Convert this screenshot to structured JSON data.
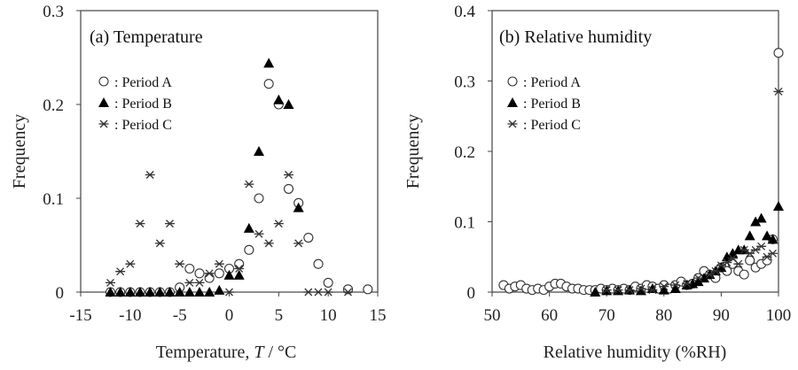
{
  "chart_data": [
    {
      "type": "scatter",
      "title": "(a) Temperature",
      "xlabel": "Temperature,",
      "xlabel_symbol": "T",
      "xlabel_unit": "/ °C",
      "ylabel": "Frequency",
      "xlim": [
        -15,
        15
      ],
      "ylim": [
        0,
        0.3
      ],
      "xticks": [
        "-15",
        "-10",
        "-5",
        "0",
        "5",
        "10",
        "15"
      ],
      "yticks": [
        "0",
        "0.1",
        "0.2",
        "0.3"
      ],
      "series": [
        {
          "name": ": Period A",
          "marker": "circle",
          "x": [
            -12,
            -11,
            -10,
            -9,
            -8,
            -7,
            -6,
            -5,
            -4,
            -3,
            -2,
            -1,
            0,
            1,
            2,
            3,
            4,
            5,
            6,
            7,
            8,
            9,
            10,
            12,
            14
          ],
          "y": [
            0,
            0,
            0,
            0,
            0,
            0,
            0,
            0.005,
            0.025,
            0.02,
            0.015,
            0.02,
            0.025,
            0.03,
            0.045,
            0.1,
            0.222,
            0.2,
            0.11,
            0.095,
            0.058,
            0.03,
            0.01,
            0.003,
            0.003
          ]
        },
        {
          "name": ": Period B",
          "marker": "triangle",
          "x": [
            -12,
            -11,
            -10,
            -9,
            -8,
            -7,
            -6,
            -5,
            -4,
            -3,
            -2,
            -1,
            0,
            1,
            2,
            3,
            4,
            5,
            6,
            7
          ],
          "y": [
            0,
            0,
            0,
            0,
            0,
            0,
            0,
            0,
            0,
            0,
            0,
            0.002,
            0.018,
            0.018,
            0.068,
            0.15,
            0.244,
            0.205,
            0.2,
            0.09
          ]
        },
        {
          "name": ": Period C",
          "marker": "asterisk",
          "x": [
            -12,
            -11,
            -10,
            -9,
            -8,
            -7,
            -6,
            -5,
            -4,
            -3,
            -2,
            -1,
            0,
            1,
            2,
            3,
            4,
            5,
            6,
            7,
            8,
            9,
            10,
            12
          ],
          "y": [
            0.01,
            0.022,
            0.03,
            0.073,
            0.125,
            0.052,
            0.073,
            0.03,
            0.01,
            0.01,
            0.02,
            0.03,
            0,
            0.025,
            0.115,
            0.062,
            0.052,
            0.073,
            0.125,
            0.052,
            0,
            0,
            0,
            0
          ]
        }
      ]
    },
    {
      "type": "scatter",
      "title": "(b) Relative humidity",
      "xlabel": "Relative humidity (%RH)",
      "ylabel": "Frequency",
      "xlim": [
        50,
        100
      ],
      "ylim": [
        0,
        0.4
      ],
      "xticks": [
        "50",
        "60",
        "70",
        "80",
        "90",
        "100"
      ],
      "yticks": [
        "0",
        "0.1",
        "0.2",
        "0.3",
        "0.4"
      ],
      "series": [
        {
          "name": ": Period A",
          "marker": "circle",
          "x": [
            52,
            53,
            54,
            55,
            56,
            57,
            58,
            59,
            60,
            61,
            62,
            63,
            64,
            65,
            66,
            67,
            68,
            69,
            70,
            71,
            72,
            73,
            74,
            75,
            76,
            77,
            78,
            79,
            80,
            81,
            82,
            83,
            84,
            85,
            86,
            87,
            88,
            89,
            90,
            91,
            92,
            93,
            94,
            95,
            96,
            97,
            98,
            99,
            100
          ],
          "y": [
            0.01,
            0.005,
            0.008,
            0.01,
            0.005,
            0.003,
            0.005,
            0.003,
            0.008,
            0.012,
            0.012,
            0.008,
            0.005,
            0.005,
            0.003,
            0.003,
            0.003,
            0.005,
            0.003,
            0.005,
            0.003,
            0.005,
            0.003,
            0.008,
            0.005,
            0.01,
            0.008,
            0.005,
            0.01,
            0.005,
            0.01,
            0.015,
            0.01,
            0.012,
            0.02,
            0.03,
            0.025,
            0.02,
            0.035,
            0.03,
            0.04,
            0.03,
            0.025,
            0.045,
            0.035,
            0.04,
            0.045,
            0.075,
            0.34
          ]
        },
        {
          "name": ": Period B",
          "marker": "triangle",
          "x": [
            68,
            70,
            72,
            74,
            76,
            78,
            80,
            82,
            84,
            85,
            86,
            87,
            88,
            89,
            90,
            91,
            92,
            93,
            94,
            95,
            96,
            97,
            98,
            99,
            100
          ],
          "y": [
            0,
            0.002,
            0.002,
            0.003,
            0.002,
            0.005,
            0.003,
            0.005,
            0.01,
            0.012,
            0.015,
            0.02,
            0.025,
            0.03,
            0.035,
            0.05,
            0.055,
            0.06,
            0.06,
            0.08,
            0.1,
            0.105,
            0.08,
            0.075,
            0.122
          ]
        },
        {
          "name": ": Period C",
          "marker": "asterisk",
          "x": [
            70,
            72,
            74,
            76,
            78,
            80,
            82,
            84,
            86,
            88,
            89,
            90,
            91,
            92,
            93,
            94,
            95,
            96,
            97,
            98,
            99,
            100
          ],
          "y": [
            0.003,
            0.003,
            0.003,
            0.005,
            0.003,
            0.008,
            0.01,
            0.012,
            0.02,
            0.025,
            0.03,
            0.038,
            0.042,
            0.048,
            0.04,
            0.06,
            0.055,
            0.06,
            0.065,
            0.05,
            0.055,
            0.285
          ]
        }
      ]
    }
  ]
}
